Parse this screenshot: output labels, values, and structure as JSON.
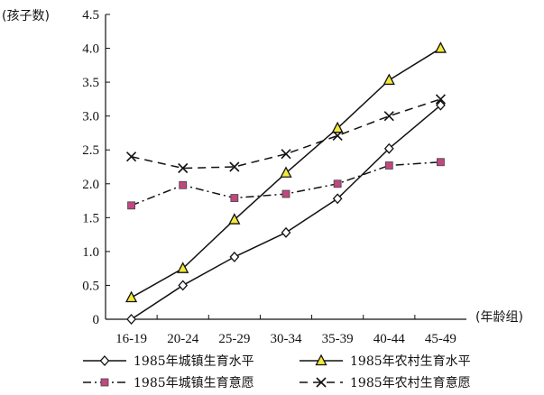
{
  "chart_data": {
    "type": "line",
    "ylabel": "(孩子数)",
    "xlabel": "(年龄组)",
    "categories": [
      "16-19",
      "20-24",
      "25-29",
      "30-34",
      "35-39",
      "40-44",
      "45-49"
    ],
    "ylim": [
      0,
      4.5
    ],
    "yticks": [
      "0",
      "0.5",
      "1.0",
      "1.5",
      "2.0",
      "2.5",
      "3.0",
      "3.5",
      "4.0",
      "4.5"
    ],
    "grid": false,
    "legend_placement": "bottom",
    "series": [
      {
        "name": "1985年城镇生育水平",
        "values": [
          0.0,
          0.5,
          0.92,
          1.28,
          1.78,
          2.52,
          3.16
        ],
        "marker": "diamond",
        "dash": "solid",
        "color": "#111111",
        "marker_fill": "#ffffff"
      },
      {
        "name": "1985年农村生育水平",
        "values": [
          0.32,
          0.75,
          1.47,
          2.16,
          2.82,
          3.53,
          4.0
        ],
        "marker": "triangle",
        "dash": "solid",
        "color": "#111111",
        "marker_fill": "#f2ea3a"
      },
      {
        "name": "1985年城镇生育意愿",
        "values": [
          1.68,
          1.98,
          1.79,
          1.85,
          2.0,
          2.27,
          2.32
        ],
        "marker": "square",
        "dash": "dashdot",
        "color": "#111111",
        "marker_fill": "#c0477f"
      },
      {
        "name": "1985年农村生育意愿",
        "values": [
          2.4,
          2.23,
          2.25,
          2.44,
          2.71,
          3.0,
          3.25
        ],
        "marker": "x",
        "dash": "dash",
        "color": "#111111",
        "marker_fill": "none"
      }
    ]
  }
}
